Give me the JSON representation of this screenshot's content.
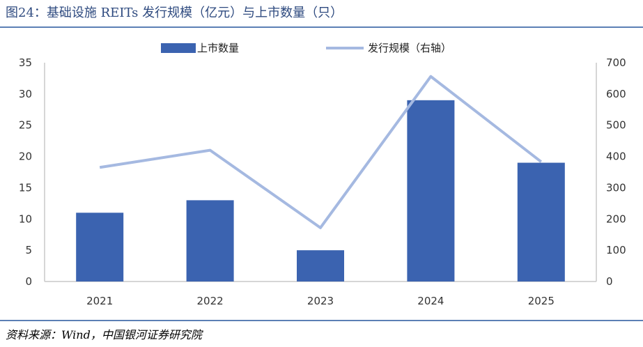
{
  "title": "图24：基础设施 REITs 发行规模（亿元）与上市数量（只）",
  "source": "资料来源：Wind，中国银河证券研究院",
  "colors": {
    "bar": "#3B63B0",
    "line": "#A5B9E1",
    "axis": "#C8C8C8",
    "rule": "#5B7FB5",
    "title": "#2E4A7F"
  },
  "chart_data": {
    "type": "bar",
    "categories": [
      "2021",
      "2022",
      "2023",
      "2024",
      "2025"
    ],
    "series": [
      {
        "name": "上市数量",
        "type": "bar",
        "axis": "left",
        "values": [
          11,
          13,
          5,
          29,
          19
        ]
      },
      {
        "name": "发行规模（右轴）",
        "type": "line",
        "axis": "right",
        "values": [
          365,
          420,
          172,
          656,
          383
        ]
      }
    ],
    "y_left": {
      "min": 0,
      "max": 35,
      "ticks": [
        "0",
        "5",
        "10",
        "15",
        "20",
        "25",
        "30",
        "35"
      ]
    },
    "y_right": {
      "min": 0,
      "max": 700,
      "ticks": [
        "0",
        "100",
        "200",
        "300",
        "400",
        "500",
        "600",
        "700"
      ]
    },
    "legend": [
      "上市数量",
      "发行规模（右轴）"
    ],
    "legend_position": "top-center",
    "grid": false
  }
}
